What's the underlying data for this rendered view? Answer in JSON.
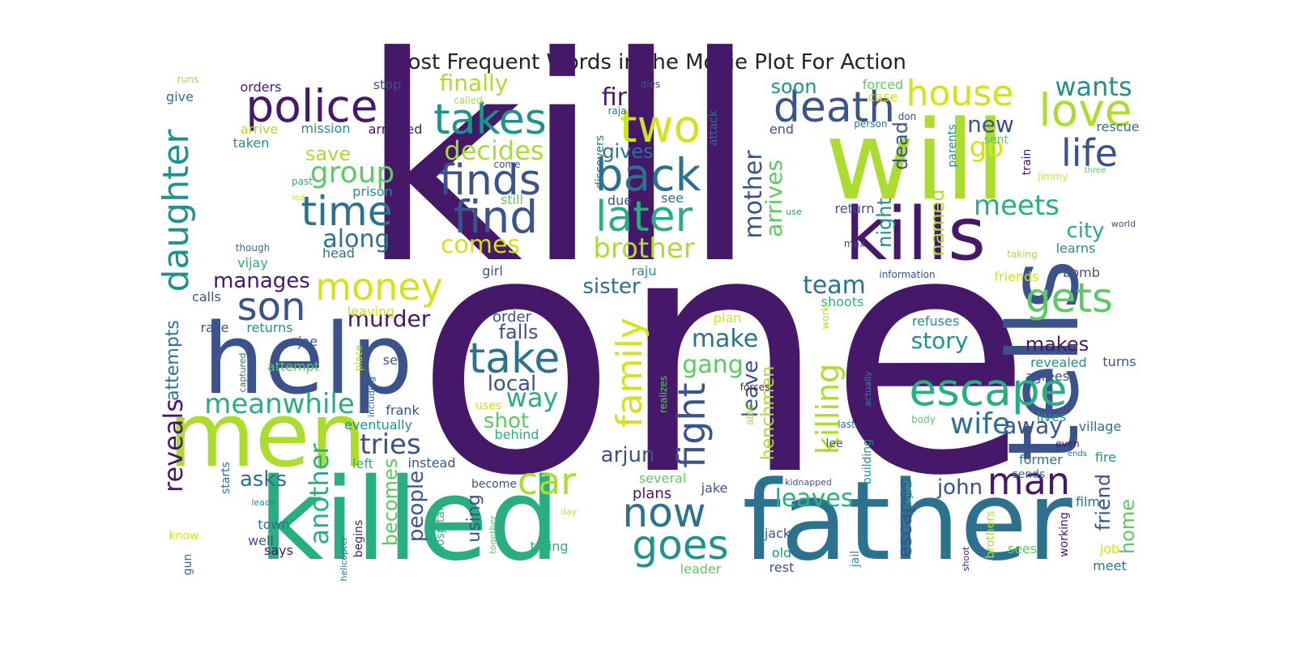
{
  "chart_data": {
    "type": "wordcloud",
    "title": "Most Frequent Words in the Movie Plot For Action",
    "palette": [
      "#46186a",
      "#3b528b",
      "#2c718e",
      "#21918c",
      "#28ae80",
      "#5ec962",
      "#addc30",
      "#d2e21b"
    ],
    "words": [
      {
        "text": "one",
        "weight": 1.0
      },
      {
        "text": "kill",
        "weight": 0.93
      },
      {
        "text": "killed",
        "weight": 0.7
      },
      {
        "text": "father",
        "weight": 0.62
      },
      {
        "text": "tells",
        "weight": 0.58
      },
      {
        "text": "will",
        "weight": 0.55
      },
      {
        "text": "help",
        "weight": 0.52
      },
      {
        "text": "men",
        "weight": 0.42
      },
      {
        "text": "kills",
        "weight": 0.38
      },
      {
        "text": "escape",
        "weight": 0.3
      },
      {
        "text": "take",
        "weight": 0.27
      },
      {
        "text": "death",
        "weight": 0.27
      },
      {
        "text": "find",
        "weight": 0.27
      },
      {
        "text": "police",
        "weight": 0.27
      },
      {
        "text": "two",
        "weight": 0.26
      },
      {
        "text": "love",
        "weight": 0.26
      },
      {
        "text": "back",
        "weight": 0.26
      },
      {
        "text": "takes",
        "weight": 0.26
      },
      {
        "text": "finds",
        "weight": 0.25
      },
      {
        "text": "later",
        "weight": 0.25
      },
      {
        "text": "house",
        "weight": 0.24
      },
      {
        "text": "time",
        "weight": 0.24
      },
      {
        "text": "money",
        "weight": 0.24
      },
      {
        "text": "son",
        "weight": 0.24
      },
      {
        "text": "goes",
        "weight": 0.23
      },
      {
        "text": "now",
        "weight": 0.23
      },
      {
        "text": "gets",
        "weight": 0.23
      },
      {
        "text": "man",
        "weight": 0.23
      },
      {
        "text": "fight",
        "weight": 0.22
      },
      {
        "text": "life",
        "weight": 0.22
      },
      {
        "text": "daughter",
        "weight": 0.22
      },
      {
        "text": "family",
        "weight": 0.22
      },
      {
        "text": "car",
        "weight": 0.22
      },
      {
        "text": "group",
        "weight": 0.18
      },
      {
        "text": "decides",
        "weight": 0.18
      },
      {
        "text": "brother",
        "weight": 0.18
      },
      {
        "text": "killing",
        "weight": 0.18
      },
      {
        "text": "wife",
        "weight": 0.18
      },
      {
        "text": "meets",
        "weight": 0.17
      },
      {
        "text": "along",
        "weight": 0.17
      },
      {
        "text": "meanwhile",
        "weight": 0.17
      },
      {
        "text": "tries",
        "weight": 0.17
      },
      {
        "text": "another",
        "weight": 0.16
      },
      {
        "text": "comes",
        "weight": 0.16
      },
      {
        "text": "mother",
        "weight": 0.16
      },
      {
        "text": "arrives",
        "weight": 0.16
      },
      {
        "text": "wants",
        "weight": 0.16
      },
      {
        "text": "first",
        "weight": 0.15
      },
      {
        "text": "finally",
        "weight": 0.15
      },
      {
        "text": "make",
        "weight": 0.15
      },
      {
        "text": "gang",
        "weight": 0.15
      },
      {
        "text": "way",
        "weight": 0.15
      },
      {
        "text": "leaves",
        "weight": 0.15
      },
      {
        "text": "team",
        "weight": 0.15
      },
      {
        "text": "local",
        "weight": 0.14
      },
      {
        "text": "go",
        "weight": 0.14
      },
      {
        "text": "leave",
        "weight": 0.14
      },
      {
        "text": "reveals",
        "weight": 0.14
      },
      {
        "text": "murder",
        "weight": 0.14
      },
      {
        "text": "story",
        "weight": 0.14
      },
      {
        "text": "new",
        "weight": 0.14
      },
      {
        "text": "away",
        "weight": 0.14
      },
      {
        "text": "city",
        "weight": 0.13
      },
      {
        "text": "sister",
        "weight": 0.13
      },
      {
        "text": "falls",
        "weight": 0.13
      },
      {
        "text": "shot",
        "weight": 0.13
      },
      {
        "text": "arjun",
        "weight": 0.13
      },
      {
        "text": "john",
        "weight": 0.13
      },
      {
        "text": "manages",
        "weight": 0.13
      },
      {
        "text": "asks",
        "weight": 0.13
      },
      {
        "text": "people",
        "weight": 0.13
      },
      {
        "text": "becomes",
        "weight": 0.13
      },
      {
        "text": "makes",
        "weight": 0.13
      },
      {
        "text": "soon",
        "weight": 0.12
      },
      {
        "text": "gives",
        "weight": 0.12
      },
      {
        "text": "save",
        "weight": 0.12
      },
      {
        "text": "night",
        "weight": 0.12
      },
      {
        "text": "dead",
        "weight": 0.12
      },
      {
        "text": "named",
        "weight": 0.12
      },
      {
        "text": "escapes",
        "weight": 0.12
      },
      {
        "text": "friend",
        "weight": 0.12
      },
      {
        "text": "home",
        "weight": 0.12
      },
      {
        "text": "attempts",
        "weight": 0.12
      },
      {
        "text": "henchmen",
        "weight": 0.12
      },
      {
        "text": "using",
        "weight": 0.12
      },
      {
        "text": "plans",
        "weight": 0.11
      },
      {
        "text": "order",
        "weight": 0.11
      },
      {
        "text": "head",
        "weight": 0.11
      },
      {
        "text": "vijay",
        "weight": 0.11
      },
      {
        "text": "orders",
        "weight": 0.11
      },
      {
        "text": "prison",
        "weight": 0.11
      },
      {
        "text": "stop",
        "weight": 0.11
      },
      {
        "text": "forced",
        "weight": 0.11
      },
      {
        "text": "arrested",
        "weight": 0.11
      },
      {
        "text": "mission",
        "weight": 0.11
      },
      {
        "text": "give",
        "weight": 0.11
      },
      {
        "text": "arrive",
        "weight": 0.11
      },
      {
        "text": "taken",
        "weight": 0.11
      },
      {
        "text": "case",
        "weight": 0.11
      },
      {
        "text": "rescue",
        "weight": 0.11
      },
      {
        "text": "end",
        "weight": 0.11
      },
      {
        "text": "sent",
        "weight": 0.11
      },
      {
        "text": "still",
        "weight": 0.1
      },
      {
        "text": "due",
        "weight": 0.1
      },
      {
        "text": "see",
        "weight": 0.1
      },
      {
        "text": "return",
        "weight": 0.1
      },
      {
        "text": "learns",
        "weight": 0.1
      },
      {
        "text": "bomb",
        "weight": 0.1
      },
      {
        "text": "friends",
        "weight": 0.1
      },
      {
        "text": "girl",
        "weight": 0.1
      },
      {
        "text": "raju",
        "weight": 0.1
      },
      {
        "text": "calls",
        "weight": 0.1
      },
      {
        "text": "leaving",
        "weight": 0.1
      },
      {
        "text": "shoots",
        "weight": 0.1
      },
      {
        "text": "refuses",
        "weight": 0.1
      },
      {
        "text": "race",
        "weight": 0.1
      },
      {
        "text": "returns",
        "weight": 0.1
      },
      {
        "text": "joe",
        "weight": 0.1
      },
      {
        "text": "attempt",
        "weight": 0.1
      },
      {
        "text": "set",
        "weight": 0.1
      },
      {
        "text": "frank",
        "weight": 0.1
      },
      {
        "text": "eventually",
        "weight": 0.1
      },
      {
        "text": "instead",
        "weight": 0.1
      },
      {
        "text": "left",
        "weight": 0.1
      },
      {
        "text": "behind",
        "weight": 0.1
      },
      {
        "text": "uses",
        "weight": 0.1
      },
      {
        "text": "plan",
        "weight": 0.1
      },
      {
        "text": "revealed",
        "weight": 0.1
      },
      {
        "text": "turns",
        "weight": 0.1
      },
      {
        "text": "agrees",
        "weight": 0.1
      },
      {
        "text": "lives",
        "weight": 0.1
      },
      {
        "text": "village",
        "weight": 0.1
      },
      {
        "text": "former",
        "weight": 0.1
      },
      {
        "text": "fire",
        "weight": 0.1
      },
      {
        "text": "sends",
        "weight": 0.1
      },
      {
        "text": "film",
        "weight": 0.1
      },
      {
        "text": "several",
        "weight": 0.1
      },
      {
        "text": "jake",
        "weight": 0.1
      },
      {
        "text": "jack",
        "weight": 0.1
      },
      {
        "text": "old",
        "weight": 0.1
      },
      {
        "text": "rest",
        "weight": 0.1
      },
      {
        "text": "leader",
        "weight": 0.1
      },
      {
        "text": "trying",
        "weight": 0.1
      },
      {
        "text": "sees",
        "weight": 0.1
      },
      {
        "text": "job",
        "weight": 0.1
      },
      {
        "text": "meet",
        "weight": 0.1
      },
      {
        "text": "town",
        "weight": 0.1
      },
      {
        "text": "well",
        "weight": 0.1
      },
      {
        "text": "says",
        "weight": 0.1
      },
      {
        "text": "know",
        "weight": 0.1
      },
      {
        "text": "become",
        "weight": 0.1
      },
      {
        "text": "lee",
        "weight": 0.1
      },
      {
        "text": "starts",
        "weight": 0.09
      },
      {
        "text": "begins",
        "weight": 0.09
      },
      {
        "text": "gun",
        "weight": 0.09
      },
      {
        "text": "hospital",
        "weight": 0.09
      },
      {
        "text": "jail",
        "weight": 0.09
      },
      {
        "text": "working",
        "weight": 0.09
      },
      {
        "text": "brothers",
        "weight": 0.09
      },
      {
        "text": "building",
        "weight": 0.09
      },
      {
        "text": "attack",
        "weight": 0.09
      },
      {
        "text": "discovers",
        "weight": 0.09
      },
      {
        "text": "parents",
        "weight": 0.09
      },
      {
        "text": "train",
        "weight": 0.09
      },
      {
        "text": "work",
        "weight": 0.08
      },
      {
        "text": "place",
        "weight": 0.08
      },
      {
        "text": "realizes",
        "weight": 0.08
      },
      {
        "text": "able",
        "weight": 0.08
      },
      {
        "text": "come",
        "weight": 0.08
      },
      {
        "text": "called",
        "weight": 0.08
      },
      {
        "text": "dies",
        "weight": 0.08
      },
      {
        "text": "runs",
        "weight": 0.08
      },
      {
        "text": "raja",
        "weight": 0.08
      },
      {
        "text": "person",
        "weight": 0.08
      },
      {
        "text": "don",
        "weight": 0.08
      },
      {
        "text": "jimmy",
        "weight": 0.08
      },
      {
        "text": "three",
        "weight": 0.08
      },
      {
        "text": "past",
        "weight": 0.08
      },
      {
        "text": "led",
        "weight": 0.08
      },
      {
        "text": "use",
        "weight": 0.08
      },
      {
        "text": "max",
        "weight": 0.08
      },
      {
        "text": "world",
        "weight": 0.08
      },
      {
        "text": "taking",
        "weight": 0.08
      },
      {
        "text": "though",
        "weight": 0.08
      },
      {
        "text": "information",
        "weight": 0.08
      },
      {
        "text": "forces",
        "weight": 0.08
      },
      {
        "text": "last",
        "weight": 0.08
      },
      {
        "text": "body",
        "weight": 0.08
      },
      {
        "text": "even",
        "weight": 0.08
      },
      {
        "text": "ends",
        "weight": 0.08
      },
      {
        "text": "kidnapped",
        "weight": 0.08
      },
      {
        "text": "day",
        "weight": 0.08
      },
      {
        "text": "leads",
        "weight": 0.08
      },
      {
        "text": "together",
        "weight": 0.08
      },
      {
        "text": "helicopter",
        "weight": 0.08
      },
      {
        "text": "captured",
        "weight": 0.08
      },
      {
        "text": "including",
        "weight": 0.08
      },
      {
        "text": "actually",
        "weight": 0.08
      },
      {
        "text": "agent",
        "weight": 0.08
      },
      {
        "text": "shoot",
        "weight": 0.08
      }
    ]
  }
}
